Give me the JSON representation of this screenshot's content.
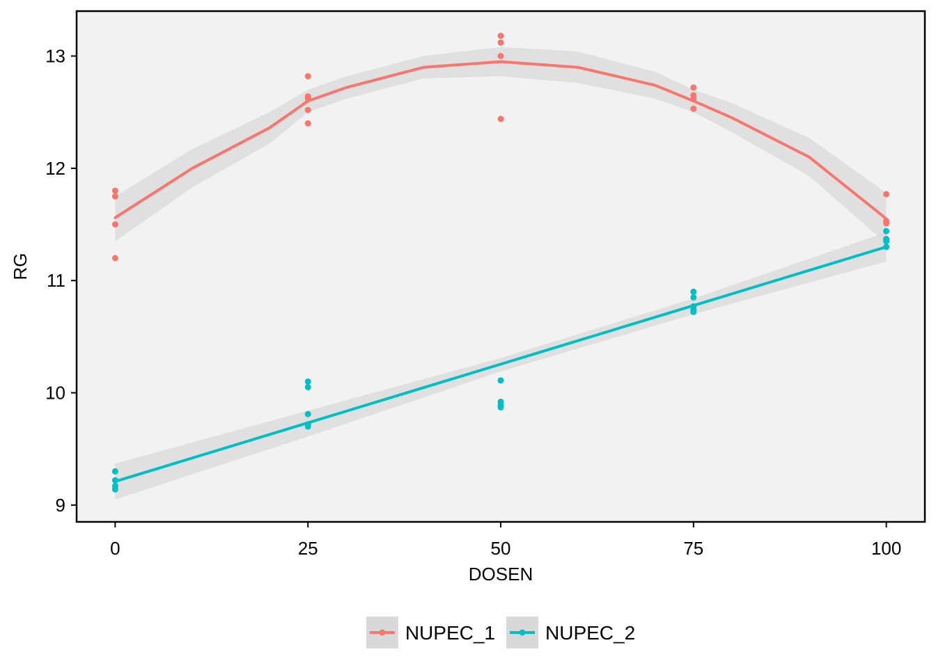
{
  "chart_data": {
    "type": "scatter",
    "xlabel": "DOSEN",
    "ylabel": "RG",
    "xlim": [
      -5,
      105
    ],
    "ylim": [
      8.85,
      13.4
    ],
    "x_ticks": [
      0,
      25,
      50,
      75,
      100
    ],
    "y_ticks": [
      9,
      10,
      11,
      12,
      13
    ],
    "grid": false,
    "legend_position": "bottom",
    "panel_background": "#f2f2f2",
    "ribbon_color": "#d9d9d9",
    "series": [
      {
        "name": "NUPEC_1",
        "color": "#f8766d",
        "points": [
          [
            0,
            11.8
          ],
          [
            0,
            11.75
          ],
          [
            0,
            11.5
          ],
          [
            0,
            11.2
          ],
          [
            25,
            12.82
          ],
          [
            25,
            12.64
          ],
          [
            25,
            12.62
          ],
          [
            25,
            12.52
          ],
          [
            25,
            12.4
          ],
          [
            50,
            13.18
          ],
          [
            50,
            13.12
          ],
          [
            50,
            13.0
          ],
          [
            50,
            12.44
          ],
          [
            75,
            12.72
          ],
          [
            75,
            12.65
          ],
          [
            75,
            12.62
          ],
          [
            75,
            12.53
          ],
          [
            100,
            11.77
          ],
          [
            100,
            11.53
          ],
          [
            100,
            11.51
          ]
        ],
        "fit": [
          [
            0,
            11.56
          ],
          [
            10,
            12.0
          ],
          [
            20,
            12.36
          ],
          [
            25,
            12.6
          ],
          [
            30,
            12.72
          ],
          [
            40,
            12.9
          ],
          [
            50,
            12.95
          ],
          [
            60,
            12.9
          ],
          [
            70,
            12.74
          ],
          [
            75,
            12.6
          ],
          [
            80,
            12.45
          ],
          [
            90,
            12.1
          ],
          [
            100,
            11.55
          ]
        ],
        "fit_band": {
          "upper": [
            [
              0,
              11.75
            ],
            [
              10,
              12.17
            ],
            [
              20,
              12.5
            ],
            [
              25,
              12.7
            ],
            [
              30,
              12.82
            ],
            [
              40,
              13.0
            ],
            [
              50,
              13.08
            ],
            [
              60,
              13.04
            ],
            [
              70,
              12.86
            ],
            [
              75,
              12.7
            ],
            [
              80,
              12.58
            ],
            [
              90,
              12.27
            ],
            [
              100,
              11.78
            ]
          ],
          "lower": [
            [
              0,
              11.35
            ],
            [
              10,
              11.83
            ],
            [
              20,
              12.22
            ],
            [
              25,
              12.5
            ],
            [
              30,
              12.62
            ],
            [
              40,
              12.8
            ],
            [
              50,
              12.82
            ],
            [
              60,
              12.76
            ],
            [
              70,
              12.62
            ],
            [
              75,
              12.5
            ],
            [
              80,
              12.32
            ],
            [
              90,
              11.93
            ],
            [
              100,
              11.33
            ]
          ]
        }
      },
      {
        "name": "NUPEC_2",
        "color": "#00bfc4",
        "points": [
          [
            0,
            9.3
          ],
          [
            0,
            9.22
          ],
          [
            0,
            9.17
          ],
          [
            0,
            9.14
          ],
          [
            25,
            10.1
          ],
          [
            25,
            10.05
          ],
          [
            25,
            9.81
          ],
          [
            25,
            9.72
          ],
          [
            25,
            9.7
          ],
          [
            50,
            10.11
          ],
          [
            50,
            9.92
          ],
          [
            50,
            9.89
          ],
          [
            50,
            9.87
          ],
          [
            75,
            10.9
          ],
          [
            75,
            10.85
          ],
          [
            75,
            10.77
          ],
          [
            75,
            10.74
          ],
          [
            75,
            10.72
          ],
          [
            100,
            11.44
          ],
          [
            100,
            11.37
          ],
          [
            100,
            11.35
          ],
          [
            100,
            11.3
          ]
        ],
        "fit": [
          [
            0,
            9.21
          ],
          [
            100,
            11.3
          ]
        ],
        "fit_band": {
          "upper": [
            [
              0,
              9.37
            ],
            [
              25,
              9.84
            ],
            [
              50,
              10.31
            ],
            [
              75,
              10.84
            ],
            [
              100,
              11.43
            ]
          ],
          "lower": [
            [
              0,
              9.05
            ],
            [
              25,
              9.61
            ],
            [
              50,
              10.19
            ],
            [
              75,
              10.7
            ],
            [
              100,
              11.17
            ]
          ]
        }
      }
    ]
  }
}
